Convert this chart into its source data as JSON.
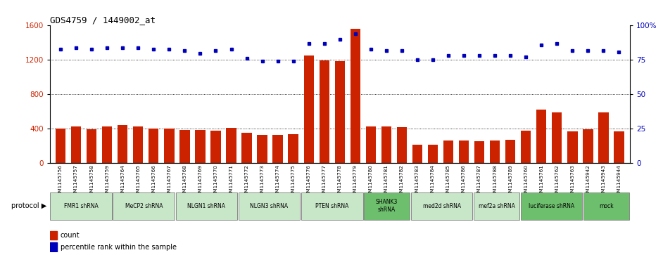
{
  "title": "GDS4759 / 1449002_at",
  "samples": [
    "GSM1145756",
    "GSM1145757",
    "GSM1145758",
    "GSM1145759",
    "GSM1145764",
    "GSM1145765",
    "GSM1145766",
    "GSM1145767",
    "GSM1145768",
    "GSM1145769",
    "GSM1145770",
    "GSM1145771",
    "GSM1145772",
    "GSM1145773",
    "GSM1145774",
    "GSM1145775",
    "GSM1145776",
    "GSM1145777",
    "GSM1145778",
    "GSM1145779",
    "GSM1145780",
    "GSM1145781",
    "GSM1145782",
    "GSM1145783",
    "GSM1145784",
    "GSM1145785",
    "GSM1145786",
    "GSM1145787",
    "GSM1145788",
    "GSM1145789",
    "GSM1145760",
    "GSM1145761",
    "GSM1145762",
    "GSM1145763",
    "GSM1145942",
    "GSM1145943",
    "GSM1145944"
  ],
  "counts": [
    400,
    425,
    398,
    430,
    440,
    430,
    400,
    400,
    385,
    385,
    380,
    410,
    355,
    330,
    330,
    340,
    1250,
    1195,
    1185,
    1560,
    430,
    430,
    415,
    215,
    215,
    260,
    265,
    255,
    265,
    275,
    380,
    620,
    590,
    370,
    395,
    590,
    370
  ],
  "percentiles": [
    83,
    84,
    83,
    84,
    84,
    84,
    83,
    83,
    82,
    80,
    82,
    83,
    76,
    74,
    74,
    74,
    87,
    87,
    90,
    94,
    83,
    82,
    82,
    75,
    75,
    78,
    78,
    78,
    78,
    78,
    77,
    86,
    87,
    82,
    82,
    82,
    81
  ],
  "protocols": [
    {
      "label": "FMR1 shRNA",
      "start": 0,
      "end": 4,
      "color": "#c8e6c8"
    },
    {
      "label": "MeCP2 shRNA",
      "start": 4,
      "end": 8,
      "color": "#c8e6c8"
    },
    {
      "label": "NLGN1 shRNA",
      "start": 8,
      "end": 12,
      "color": "#c8e6c8"
    },
    {
      "label": "NLGN3 shRNA",
      "start": 12,
      "end": 16,
      "color": "#c8e6c8"
    },
    {
      "label": "PTEN shRNA",
      "start": 16,
      "end": 20,
      "color": "#c8e6c8"
    },
    {
      "label": "SHANK3\nshRNA",
      "start": 20,
      "end": 23,
      "color": "#6dbf6d"
    },
    {
      "label": "med2d shRNA",
      "start": 23,
      "end": 27,
      "color": "#c8e6c8"
    },
    {
      "label": "mef2a shRNA",
      "start": 27,
      "end": 30,
      "color": "#c8e6c8"
    },
    {
      "label": "luciferase shRNA",
      "start": 30,
      "end": 34,
      "color": "#6dbf6d"
    },
    {
      "label": "mock",
      "start": 34,
      "end": 37,
      "color": "#6dbf6d"
    }
  ],
  "bar_color": "#cc2200",
  "dot_color": "#0000bb",
  "ylim_left": [
    0,
    1600
  ],
  "ylim_right": [
    0,
    100
  ],
  "yticks_left": [
    0,
    400,
    800,
    1200,
    1600
  ],
  "yticks_right": [
    0,
    25,
    50,
    75,
    100
  ],
  "bg_color": "#ffffff"
}
